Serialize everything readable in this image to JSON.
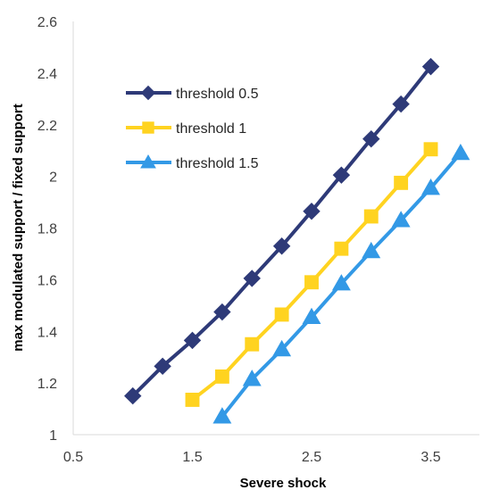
{
  "chart_data": {
    "type": "line",
    "title": "",
    "xlabel": "Severe shock",
    "ylabel": "max modulated support / fixed support",
    "xlim": [
      0.5,
      3.75
    ],
    "ylim": [
      1,
      2.6
    ],
    "xticks": [
      0.5,
      1.5,
      2.5,
      3.5
    ],
    "xtick_labels": [
      "0.5",
      "1.5",
      "2.5",
      "3.5"
    ],
    "yticks": [
      1,
      1.2,
      1.4,
      1.6,
      1.8,
      2,
      2.2,
      2.4,
      2.6
    ],
    "ytick_labels": [
      "1",
      "1.2",
      "1.4",
      "1.6",
      "1.8",
      "2",
      "2.2",
      "2.4",
      "2.6"
    ],
    "grid": false,
    "legend_position": "upper-left inside plot",
    "series": [
      {
        "name": "threshold 0.5",
        "color": "#2E3A78",
        "marker": "diamond",
        "x": [
          1,
          1.25,
          1.5,
          1.75,
          2,
          2.25,
          2.5,
          2.75,
          3,
          3.25,
          3.5
        ],
        "values": [
          1.15,
          1.265,
          1.365,
          1.475,
          1.605,
          1.73,
          1.865,
          2.005,
          2.145,
          2.28,
          2.425
        ]
      },
      {
        "name": "threshold 1",
        "color": "#FFD320",
        "marker": "square",
        "x": [
          1.5,
          1.75,
          2,
          2.25,
          2.5,
          2.75,
          3,
          3.25,
          3.5
        ],
        "values": [
          1.135,
          1.225,
          1.35,
          1.465,
          1.59,
          1.72,
          1.845,
          1.975,
          2.105
        ]
      },
      {
        "name": "threshold 1.5",
        "color": "#3399E6",
        "marker": "triangle",
        "x": [
          1.75,
          2,
          2.25,
          2.5,
          2.75,
          3,
          3.25,
          3.5,
          3.75
        ],
        "values": [
          1.07,
          1.215,
          1.33,
          1.455,
          1.585,
          1.71,
          1.83,
          1.955,
          2.09
        ]
      }
    ]
  }
}
